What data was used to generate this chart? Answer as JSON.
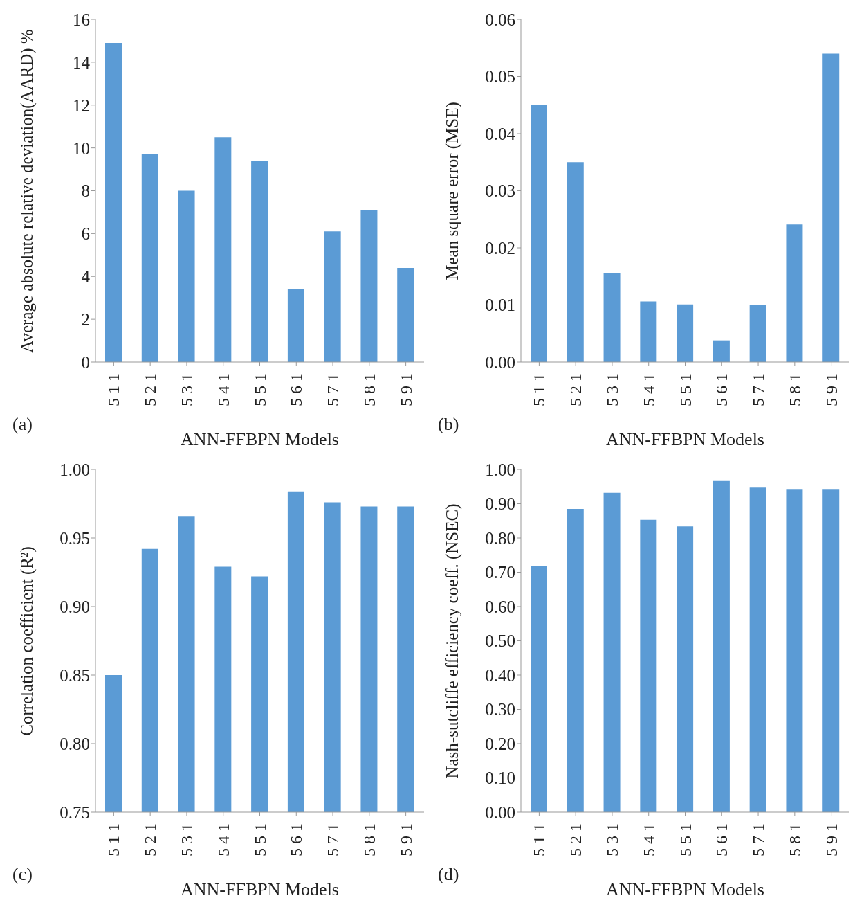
{
  "chart_data": [
    {
      "type": "bar",
      "categories": [
        "5 1 1",
        "5 2 1",
        "5 3 1",
        "5 4 1",
        "5 5 1",
        "5 6 1",
        "5 7 1",
        "5 8 1",
        "5 9 1"
      ],
      "values": [
        14.9,
        9.7,
        8.0,
        10.5,
        9.4,
        3.4,
        6.1,
        7.1,
        4.4
      ],
      "color": "#5b9bd5",
      "xlabel": "ANN-FFBPN Models",
      "ylabel": "Average absolute relative deviation(AARD) %",
      "ylim": [
        0,
        16
      ],
      "yticks": [
        0,
        2,
        4,
        6,
        8,
        10,
        12,
        14,
        16
      ],
      "annotations": [
        "(a)"
      ]
    },
    {
      "type": "bar",
      "categories": [
        "5 1 1",
        "5 2 1",
        "5 3 1",
        "5 4 1",
        "5 5 1",
        "5 6 1",
        "5 7 1",
        "5 8 1",
        "5 9 1"
      ],
      "values": [
        0.045,
        0.035,
        0.0156,
        0.0106,
        0.0101,
        0.0038,
        0.01,
        0.0241,
        0.054
      ],
      "color": "#5b9bd5",
      "xlabel": "ANN-FFBPN Models",
      "ylabel": "Mean square error (MSE)",
      "ylim": [
        0,
        0.06
      ],
      "yticks": [
        {
          "value": 0,
          "label": "0.00"
        },
        {
          "value": 0.01,
          "label": "0.01"
        },
        {
          "value": 0.02,
          "label": "0.02"
        },
        {
          "value": 0.03,
          "label": "0.03"
        },
        {
          "value": 0.04,
          "label": "0.04"
        },
        {
          "value": 0.05,
          "label": "0.05"
        },
        {
          "value": 0.06,
          "label": "0.06"
        }
      ],
      "annotations": [
        "(b)"
      ]
    },
    {
      "type": "bar",
      "categories": [
        "5 1 1",
        "5 2 1",
        "5 3 1",
        "5 4 1",
        "5 5 1",
        "5 6 1",
        "5 7 1",
        "5 8 1",
        "5 9 1"
      ],
      "values": [
        0.85,
        0.942,
        0.966,
        0.929,
        0.922,
        0.984,
        0.976,
        0.973,
        0.973
      ],
      "color": "#5b9bd5",
      "xlabel": "ANN-FFBPN Models",
      "ylabel": "Correlation coefficient (R²)",
      "ylim": [
        0.75,
        1.0
      ],
      "yticks": [
        {
          "value": 0.75,
          "label": "0.75"
        },
        {
          "value": 0.8,
          "label": "0.80"
        },
        {
          "value": 0.85,
          "label": "0.85"
        },
        {
          "value": 0.9,
          "label": "0.90"
        },
        {
          "value": 0.95,
          "label": "0.95"
        },
        {
          "value": 1.0,
          "label": "1.00"
        }
      ],
      "annotations": [
        "(c)"
      ]
    },
    {
      "type": "bar",
      "categories": [
        "5 1 1",
        "5 2 1",
        "5 3 1",
        "5 4 1",
        "5 5 1",
        "5 6 1",
        "5 7 1",
        "5 8 1",
        "5 9 1"
      ],
      "values": [
        0.717,
        0.885,
        0.932,
        0.853,
        0.834,
        0.968,
        0.947,
        0.943,
        0.943
      ],
      "color": "#5b9bd5",
      "xlabel": "ANN-FFBPN Models",
      "ylabel": "Nash-sutcliffe efficiency coeff. (NSEC)",
      "ylim": [
        0,
        1.0
      ],
      "yticks": [
        {
          "value": 0,
          "label": "0.00"
        },
        {
          "value": 0.1,
          "label": "0.10"
        },
        {
          "value": 0.2,
          "label": "0.20"
        },
        {
          "value": 0.3,
          "label": "0.30"
        },
        {
          "value": 0.4,
          "label": "0.40"
        },
        {
          "value": 0.5,
          "label": "0.50"
        },
        {
          "value": 0.6,
          "label": "0.60"
        },
        {
          "value": 0.7,
          "label": "0.70"
        },
        {
          "value": 0.8,
          "label": "0.80"
        },
        {
          "value": 0.9,
          "label": "0.90"
        },
        {
          "value": 1.0,
          "label": "1.00"
        }
      ],
      "annotations": [
        "(d)"
      ]
    }
  ]
}
